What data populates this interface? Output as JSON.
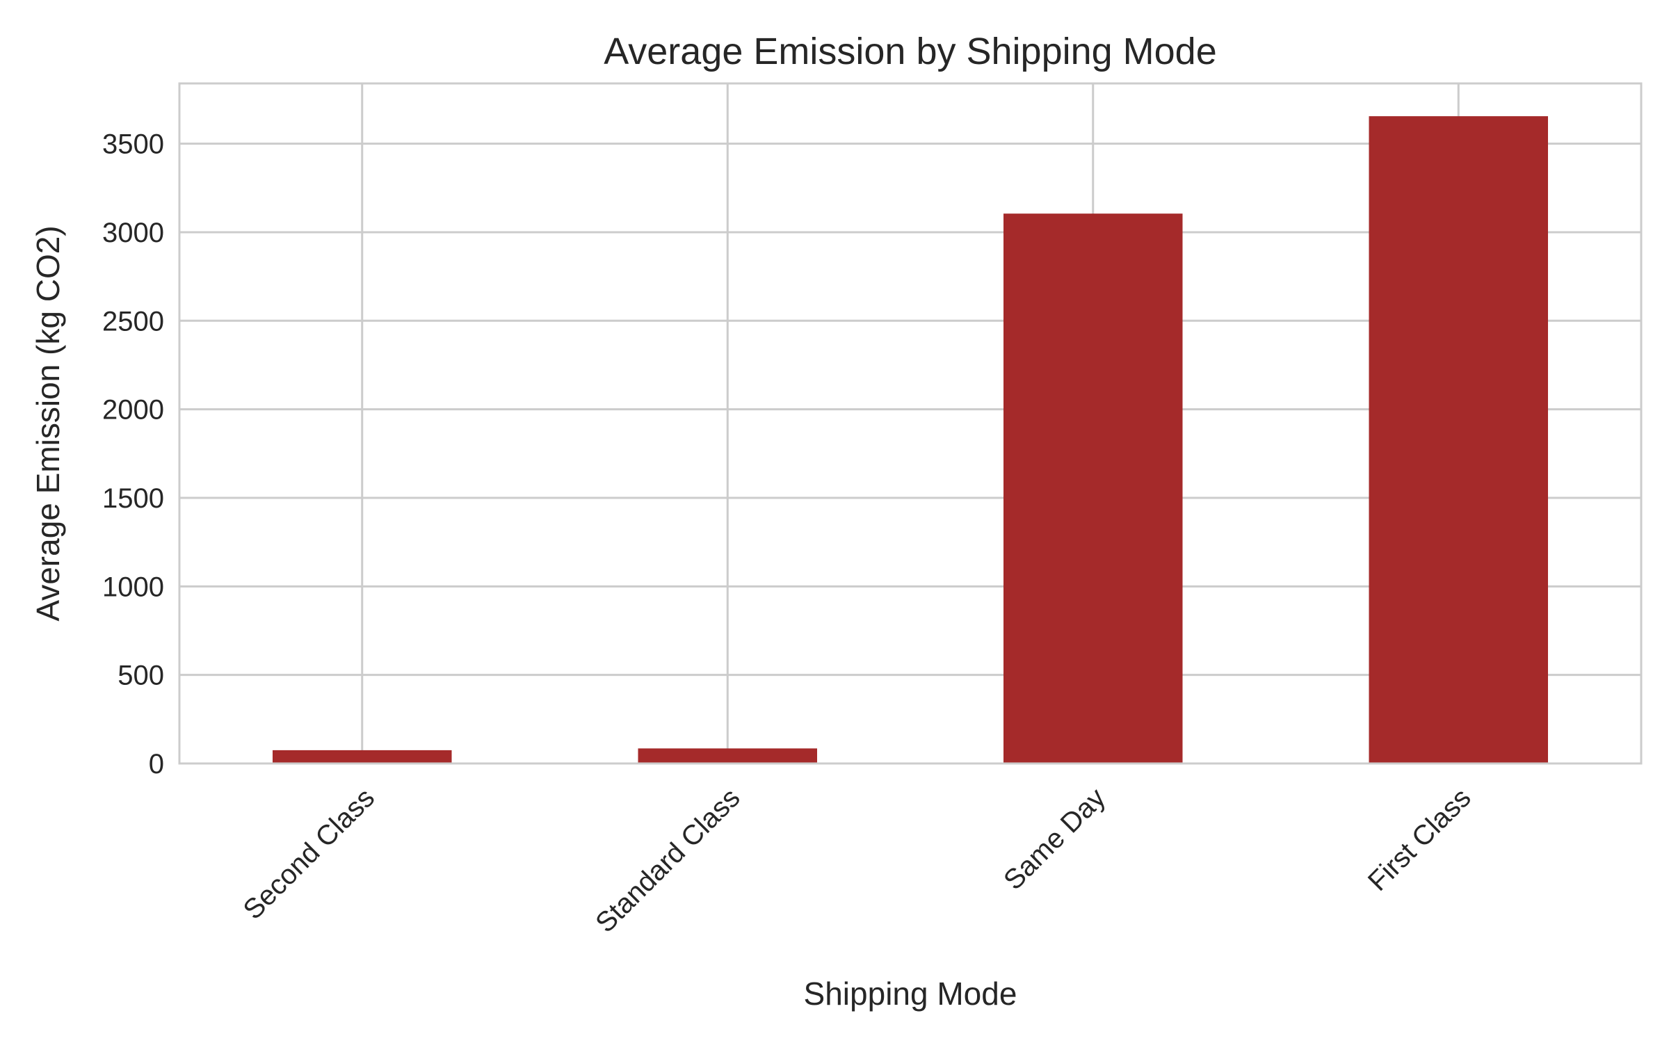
{
  "chart_data": {
    "type": "bar",
    "title": "Average Emission by Shipping Mode",
    "xlabel": "Shipping Mode",
    "ylabel": "Average Emission (kg CO2)",
    "categories": [
      "Second Class",
      "Standard Class",
      "Same Day",
      "First Class"
    ],
    "values": [
      75,
      85,
      3105,
      3655
    ],
    "ylim": [
      0,
      3840
    ],
    "yticks": [
      0,
      500,
      1000,
      1500,
      2000,
      2500,
      3000,
      3500
    ],
    "grid": true,
    "legend": "none",
    "bar_color": "#a52a2a",
    "grid_color": "#cccccc",
    "axis_color": "#cccccc"
  }
}
